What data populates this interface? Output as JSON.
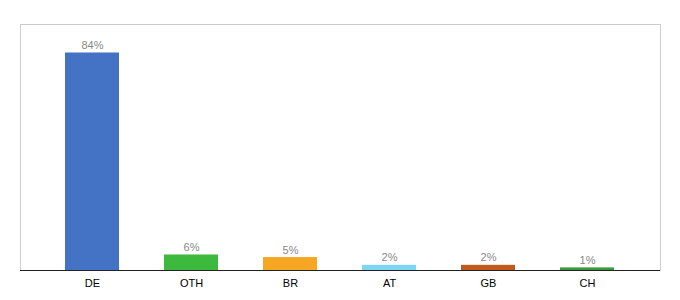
{
  "chart_data": {
    "type": "bar",
    "categories": [
      "DE",
      "OTH",
      "BR",
      "AT",
      "GB",
      "CH"
    ],
    "values": [
      84,
      6,
      5,
      2,
      2,
      1
    ],
    "value_labels": [
      "84%",
      "6%",
      "5%",
      "2%",
      "2%",
      "1%"
    ],
    "colors": [
      "#4472c4",
      "#3dba3d",
      "#f5a623",
      "#7dd4f5",
      "#c05a1f",
      "#3a9a3a"
    ],
    "ylim": [
      0,
      95
    ],
    "data_labels": true,
    "tick_labels": "x"
  }
}
